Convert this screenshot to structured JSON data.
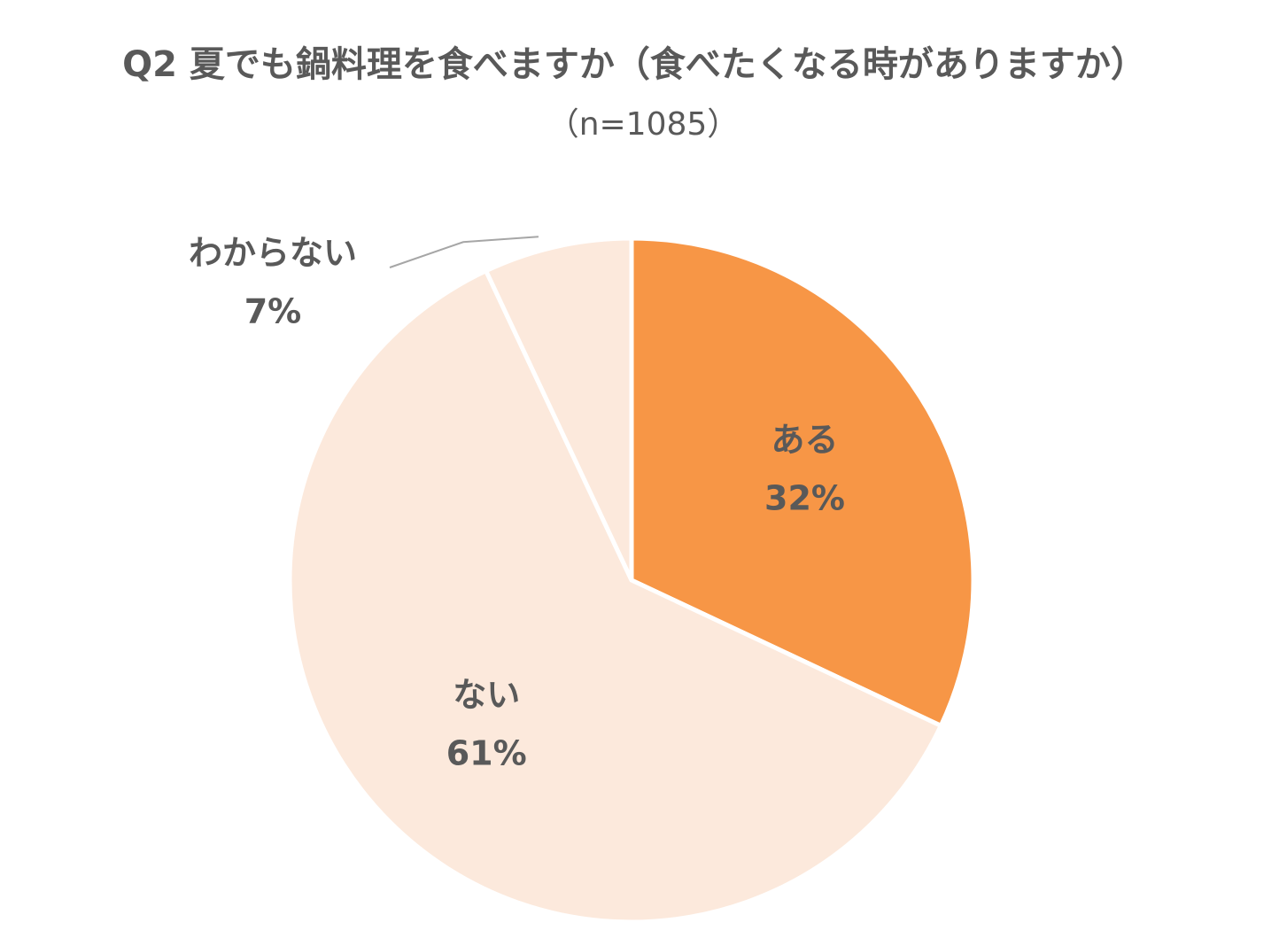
{
  "chart_data": {
    "type": "pie",
    "title": "Q2 夏でも鍋料理を食べますか（食べたくなる時がありますか）",
    "subtitle": "（n=1085）",
    "categories": [
      "ある",
      "ない",
      "わからない"
    ],
    "values": [
      32,
      61,
      7
    ],
    "value_labels": [
      "32%",
      "61%",
      "7%"
    ],
    "colors": [
      "#F79646",
      "#FCE9DC",
      "#FCE9DC"
    ]
  }
}
